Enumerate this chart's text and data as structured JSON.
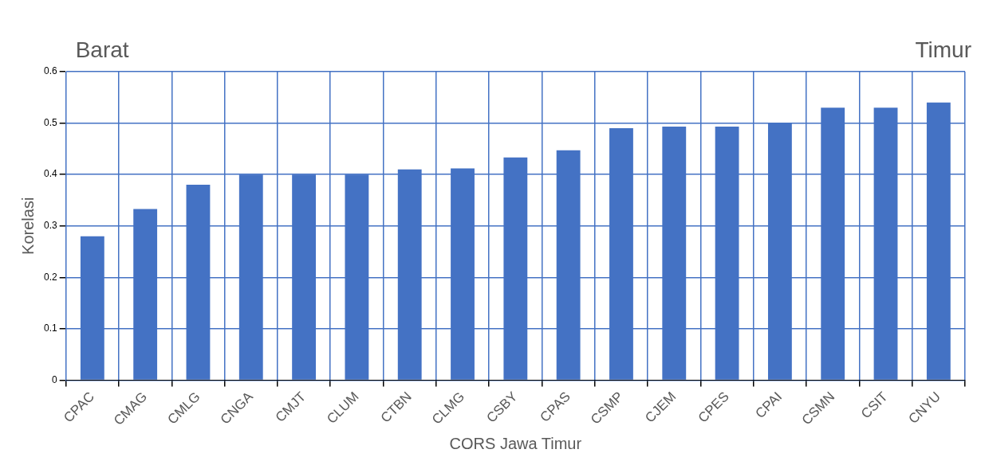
{
  "chart_data": {
    "type": "bar",
    "xlabel": "CORS Jawa Timur",
    "ylabel": "Korelasi",
    "annotations": [
      "Barat",
      "Timur"
    ],
    "categories": [
      "CPAC",
      "CMAG",
      "CMLG",
      "CNGA",
      "CMJT",
      "CLUM",
      "CTBN",
      "CLMG",
      "CSBY",
      "CPAS",
      "CSMP",
      "CJEM",
      "CPES",
      "CPAI",
      "CSMN",
      "CSIT",
      "CNYU"
    ],
    "values": [
      0.28,
      0.333,
      0.38,
      0.4,
      0.4,
      0.4,
      0.41,
      0.412,
      0.433,
      0.447,
      0.49,
      0.493,
      0.493,
      0.5,
      0.53,
      0.53,
      0.54
    ],
    "color": "#4472c4",
    "ylim": [
      0,
      0.6
    ],
    "yticks": [
      0,
      0.1,
      0.2,
      0.3,
      0.4,
      0.5,
      0.6
    ],
    "grid": true,
    "legend": false
  }
}
